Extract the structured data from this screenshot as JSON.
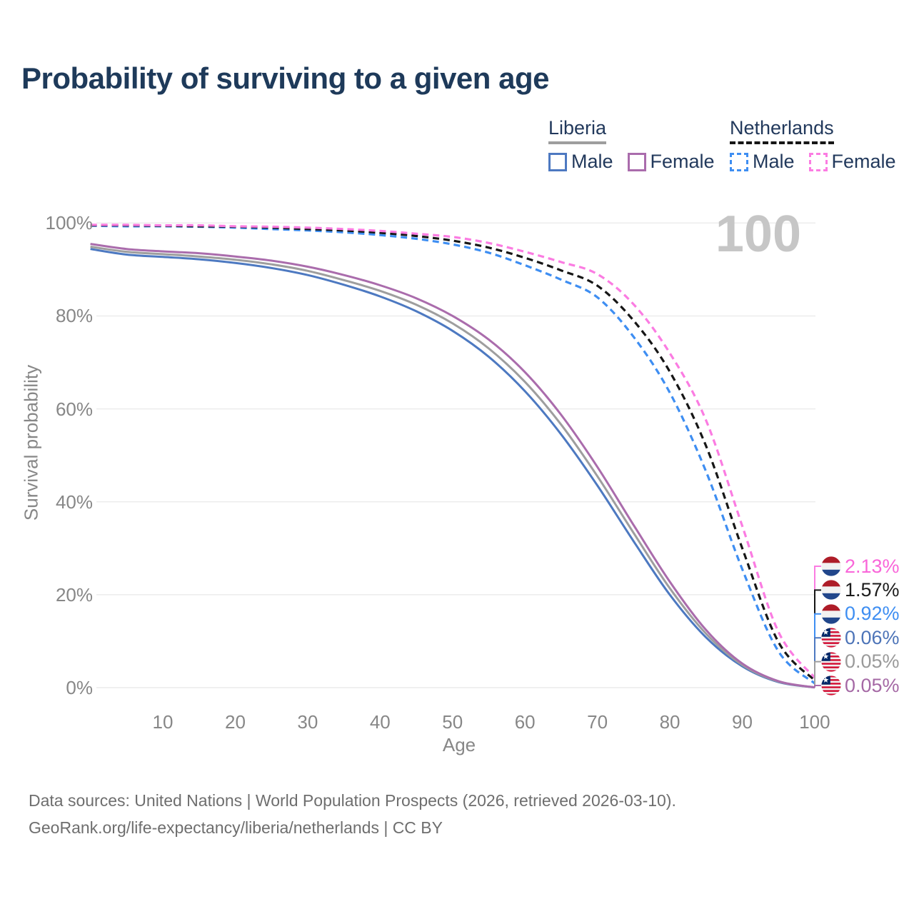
{
  "title": "Probability of surviving to a given age",
  "watermark_age": "100",
  "legend": {
    "groups": [
      {
        "name": "Liberia",
        "line_style": "solid",
        "line_color": "#9e9e9e",
        "items": [
          {
            "label": "Male",
            "color": "#4d79c1"
          },
          {
            "label": "Female",
            "color": "#aa6cac"
          }
        ]
      },
      {
        "name": "Netherlands",
        "line_style": "dashed",
        "line_color": "#161616",
        "items": [
          {
            "label": "Male",
            "color": "#3e8ef2"
          },
          {
            "label": "Female",
            "color": "#fb7ce2"
          }
        ]
      }
    ]
  },
  "chart_data": {
    "type": "line",
    "title": "Probability of surviving to a given age",
    "xlabel": "Age",
    "ylabel": "Survival probability",
    "xlim": [
      0,
      100
    ],
    "ylim": [
      0,
      100
    ],
    "grid": "horizontal",
    "legend_position": "top-right",
    "hover_age": "100",
    "x_ticks": [
      10,
      20,
      30,
      40,
      50,
      60,
      70,
      80,
      90,
      100
    ],
    "y_ticks": [
      {
        "value": 0,
        "label": "0%"
      },
      {
        "value": 20,
        "label": "20%"
      },
      {
        "value": 40,
        "label": "40%"
      },
      {
        "value": 60,
        "label": "60%"
      },
      {
        "value": 80,
        "label": "80%"
      },
      {
        "value": 100,
        "label": "100%"
      }
    ],
    "x": [
      0,
      5,
      10,
      15,
      20,
      25,
      30,
      35,
      40,
      45,
      50,
      55,
      60,
      65,
      70,
      75,
      80,
      85,
      90,
      95,
      100
    ],
    "series": [
      {
        "id": "liberia-male",
        "name": "Liberia Male",
        "country": "Liberia",
        "sex": "Male",
        "color": "#4d79c1",
        "dash": "solid",
        "flag": "liberia",
        "end_label": "0.06%",
        "end_label_color": "#4d74b8",
        "label_row": 3,
        "values": [
          94.4,
          93.2,
          92.7,
          92.2,
          91.4,
          90.3,
          88.8,
          86.7,
          84.2,
          81.0,
          76.8,
          71.2,
          63.8,
          54.5,
          43.5,
          31.5,
          20.0,
          10.8,
          4.6,
          1.2,
          0.06
        ]
      },
      {
        "id": "liberia-both",
        "name": "Liberia (both sexes)",
        "country": "Liberia",
        "sex": "Both",
        "color": "#9e9e9e",
        "dash": "solid",
        "flag": "liberia",
        "end_label": "0.05%",
        "end_label_color": "#9a9a9a",
        "label_row": 4,
        "values": [
          94.9,
          93.8,
          93.3,
          92.8,
          92.1,
          91.1,
          89.7,
          87.7,
          85.4,
          82.4,
          78.4,
          73.0,
          65.8,
          56.6,
          45.5,
          33.3,
          21.4,
          11.6,
          4.9,
          1.3,
          0.05
        ]
      },
      {
        "id": "liberia-female",
        "name": "Liberia Female",
        "country": "Liberia",
        "sex": "Female",
        "color": "#aa6cac",
        "dash": "solid",
        "flag": "liberia",
        "end_label": "0.05%",
        "end_label_color": "#a569a5",
        "label_row": 5,
        "values": [
          95.5,
          94.4,
          93.9,
          93.5,
          92.8,
          91.9,
          90.6,
          88.8,
          86.6,
          83.8,
          80.0,
          74.9,
          67.9,
          58.7,
          47.5,
          35.0,
          22.8,
          12.4,
          5.2,
          1.4,
          0.05
        ]
      },
      {
        "id": "netherlands-male",
        "name": "Netherlands Male",
        "country": "Netherlands",
        "sex": "Male",
        "color": "#3e8ef2",
        "dash": "dashed",
        "flag": "netherlands",
        "end_label": "0.92%",
        "end_label_color": "#3e8ef2",
        "label_row": 2,
        "values": [
          99.4,
          99.3,
          99.3,
          99.2,
          99.0,
          98.7,
          98.4,
          98.0,
          97.4,
          96.6,
          95.4,
          93.6,
          90.9,
          87.8,
          84.0,
          75.5,
          63.5,
          46.5,
          25.5,
          7.8,
          0.92
        ]
      },
      {
        "id": "netherlands-both",
        "name": "Netherlands (both sexes)",
        "country": "Netherlands",
        "sex": "Both",
        "color": "#161616",
        "dash": "dashed",
        "flag": "netherlands",
        "end_label": "1.57%",
        "end_label_color": "#1c1c1c",
        "label_row": 1,
        "values": [
          99.5,
          99.5,
          99.4,
          99.3,
          99.2,
          99.0,
          98.7,
          98.4,
          97.9,
          97.2,
          96.2,
          94.7,
          92.5,
          89.8,
          86.5,
          79.0,
          68.0,
          52.0,
          30.0,
          9.8,
          1.57
        ]
      },
      {
        "id": "netherlands-female",
        "name": "Netherlands Female",
        "country": "Netherlands",
        "sex": "Female",
        "color": "#fb7ce2",
        "dash": "dashed",
        "flag": "netherlands",
        "end_label": "2.13%",
        "end_label_color": "#f966d9",
        "label_row": 0,
        "values": [
          99.6,
          99.6,
          99.5,
          99.5,
          99.3,
          99.2,
          99.0,
          98.7,
          98.3,
          97.7,
          97.0,
          95.7,
          93.8,
          91.6,
          89.0,
          82.5,
          72.0,
          57.5,
          34.8,
          12.0,
          2.13
        ]
      }
    ]
  },
  "footer": {
    "line1": "Data sources: United Nations | World Population Prospects (2026, retrieved 2026-03-10).",
    "line2": "GeoRank.org/life-expectancy/liberia/netherlands | CC BY"
  }
}
